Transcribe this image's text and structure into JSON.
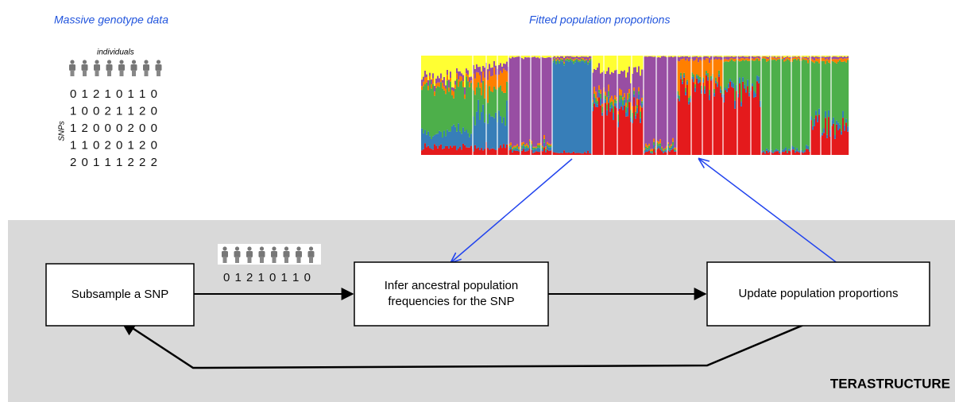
{
  "header": {
    "left_title": "Massive genotype data",
    "right_title": "Fitted population proportions"
  },
  "genotype": {
    "column_label": "individuals",
    "row_label": "SNPs",
    "rows": [
      "0 1 2 1 0 1 1 0",
      "1 0 0 2 1 1 2 0",
      "1 2 0 0 0 2 0 0",
      "1 1 0 2 0 1 2 0",
      "2 0 1 1 1 2 2 2"
    ]
  },
  "pipeline": {
    "sample_row": "0 1 2 1 0 1 1 0",
    "nodes": [
      {
        "label": "Subsample a SNP"
      },
      {
        "label": "Infer ancestral population frequencies for the SNP"
      },
      {
        "label": "Update population proportions"
      }
    ],
    "name": "TERASTRUCTURE"
  }
}
